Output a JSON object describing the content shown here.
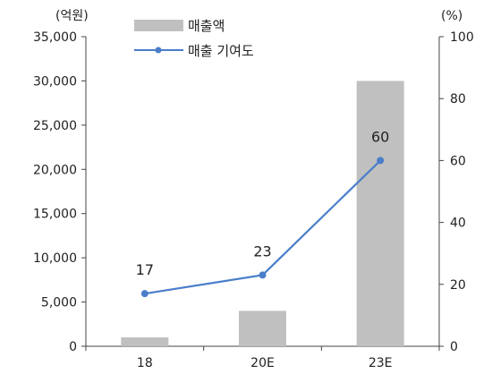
{
  "chart_data": {
    "type": "bar",
    "categories": [
      "18",
      "20E",
      "23E"
    ],
    "series": [
      {
        "name": "매출액",
        "type": "bar",
        "axis": "left",
        "color": "#c0c0c0",
        "values": [
          1000,
          4000,
          30000
        ]
      },
      {
        "name": "매출 기여도",
        "type": "line",
        "axis": "right",
        "color": "#4a7ec9",
        "values": [
          17,
          23,
          60
        ],
        "data_labels": [
          "17",
          "23",
          "60"
        ]
      }
    ],
    "y_left": {
      "unit": "(억원)",
      "ylim": [
        0,
        35000
      ],
      "ticks": [
        "0",
        "5,000",
        "10,000",
        "15,000",
        "20,000",
        "25,000",
        "30,000",
        "35,000"
      ]
    },
    "y_right": {
      "unit": "(%)",
      "ylim": [
        0,
        100
      ],
      "ticks": [
        "0",
        "20",
        "40",
        "60",
        "80",
        "100"
      ]
    },
    "grid": false,
    "legend": "top-center"
  }
}
